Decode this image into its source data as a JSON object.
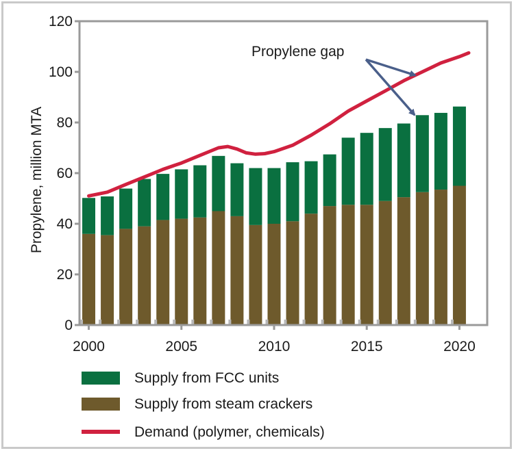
{
  "chart_data": {
    "type": "bar",
    "stacked": true,
    "ylabel": "Propylene, million MTA",
    "ylim": [
      0,
      120
    ],
    "yticks": [
      0,
      20,
      40,
      60,
      80,
      100,
      120
    ],
    "xlim": [
      1999.5,
      2021.5
    ],
    "xticks": [
      2000,
      2005,
      2010,
      2015,
      2020
    ],
    "categories": [
      2000,
      2001,
      2002,
      2003,
      2004,
      2005,
      2006,
      2007,
      2008,
      2009,
      2010,
      2011,
      2012,
      2013,
      2014,
      2015,
      2016,
      2017,
      2018,
      2019,
      2020
    ],
    "series": [
      {
        "name": "Supply from steam crackers",
        "color": "#6e5a2c",
        "values": [
          36,
          35.5,
          38,
          39,
          41.5,
          42,
          42.5,
          45,
          43,
          39.5,
          40,
          41,
          44,
          47,
          47.5,
          47.5,
          49,
          50.5,
          52.5,
          53.5,
          55
        ]
      },
      {
        "name": "Supply from FCC units",
        "color": "#0a7040",
        "values": [
          14.2,
          15.3,
          15.9,
          18.7,
          18.2,
          19.5,
          20.6,
          21.8,
          20.9,
          22.5,
          22,
          23.3,
          20.7,
          20.4,
          26.5,
          28.4,
          28.8,
          29.1,
          30.4,
          30.3,
          31.3
        ]
      }
    ],
    "demand": {
      "name": "Demand (polymer, chemicals)",
      "color": "#d0213f",
      "x": [
        2000,
        2001,
        2002,
        2003,
        2004,
        2005,
        2006,
        2007,
        2007.5,
        2008,
        2008.5,
        2009,
        2009.5,
        2010,
        2011,
        2012,
        2013,
        2014,
        2015,
        2016,
        2017,
        2018,
        2019,
        2020,
        2020.5
      ],
      "y": [
        51,
        52.5,
        55.5,
        58.5,
        61.5,
        64,
        67,
        70,
        70.5,
        69.5,
        68,
        67.5,
        67.7,
        68.5,
        71,
        75,
        79.5,
        84.5,
        88.5,
        92.5,
        96.5,
        100,
        103.5,
        106,
        107.5
      ]
    },
    "legend": {
      "position": "bottom",
      "entries": [
        "Supply from FCC units",
        "Supply from steam crackers",
        "Demand (polymer, chemicals)"
      ]
    },
    "annotation": {
      "text": "Propylene gap"
    }
  },
  "colors": {
    "axis": "#9a9a9a",
    "arrow": "#4a5f8a",
    "tick_mark": "#b8b8b8"
  }
}
